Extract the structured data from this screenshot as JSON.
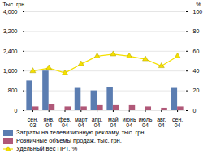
{
  "chart_data": {
    "type": "bar",
    "categories": [
      "сен.\n03",
      "янв.\n04",
      "фев.\n04",
      "март\n04",
      "апр.\n04",
      "май\n04",
      "июнь\n04",
      "июль\n04",
      "авг.\n04",
      "сен.\n04"
    ],
    "series": [
      {
        "name": "Затраты на телевизионную рекламу, тыс. грн.",
        "type": "bar",
        "color": "#5b7db1",
        "values": [
          1200,
          1600,
          0,
          900,
          800,
          950,
          0,
          0,
          0,
          900
        ]
      },
      {
        "name": "Розничные объемы продаж, тыс. грн.",
        "type": "bar",
        "color": "#b05878",
        "values": [
          150,
          250,
          150,
          150,
          200,
          200,
          200,
          150,
          100,
          150
        ]
      },
      {
        "name": "Удельный вес ПРТ, %",
        "type": "line",
        "color": "#f5e000",
        "marker": "triangle",
        "axis": "y2",
        "values": [
          40,
          43,
          38,
          47,
          55,
          57,
          55,
          52,
          45,
          55
        ]
      }
    ],
    "ylabel": "Тыс. грн.",
    "y2label": "%",
    "ylim": [
      0,
      4000
    ],
    "yticks": [
      0,
      800,
      1600,
      2400,
      3200,
      4000
    ],
    "y2lim": [
      0,
      100
    ],
    "y2ticks": [
      0,
      20,
      40,
      60,
      80,
      100
    ],
    "grid": true,
    "legend": "bottom"
  }
}
